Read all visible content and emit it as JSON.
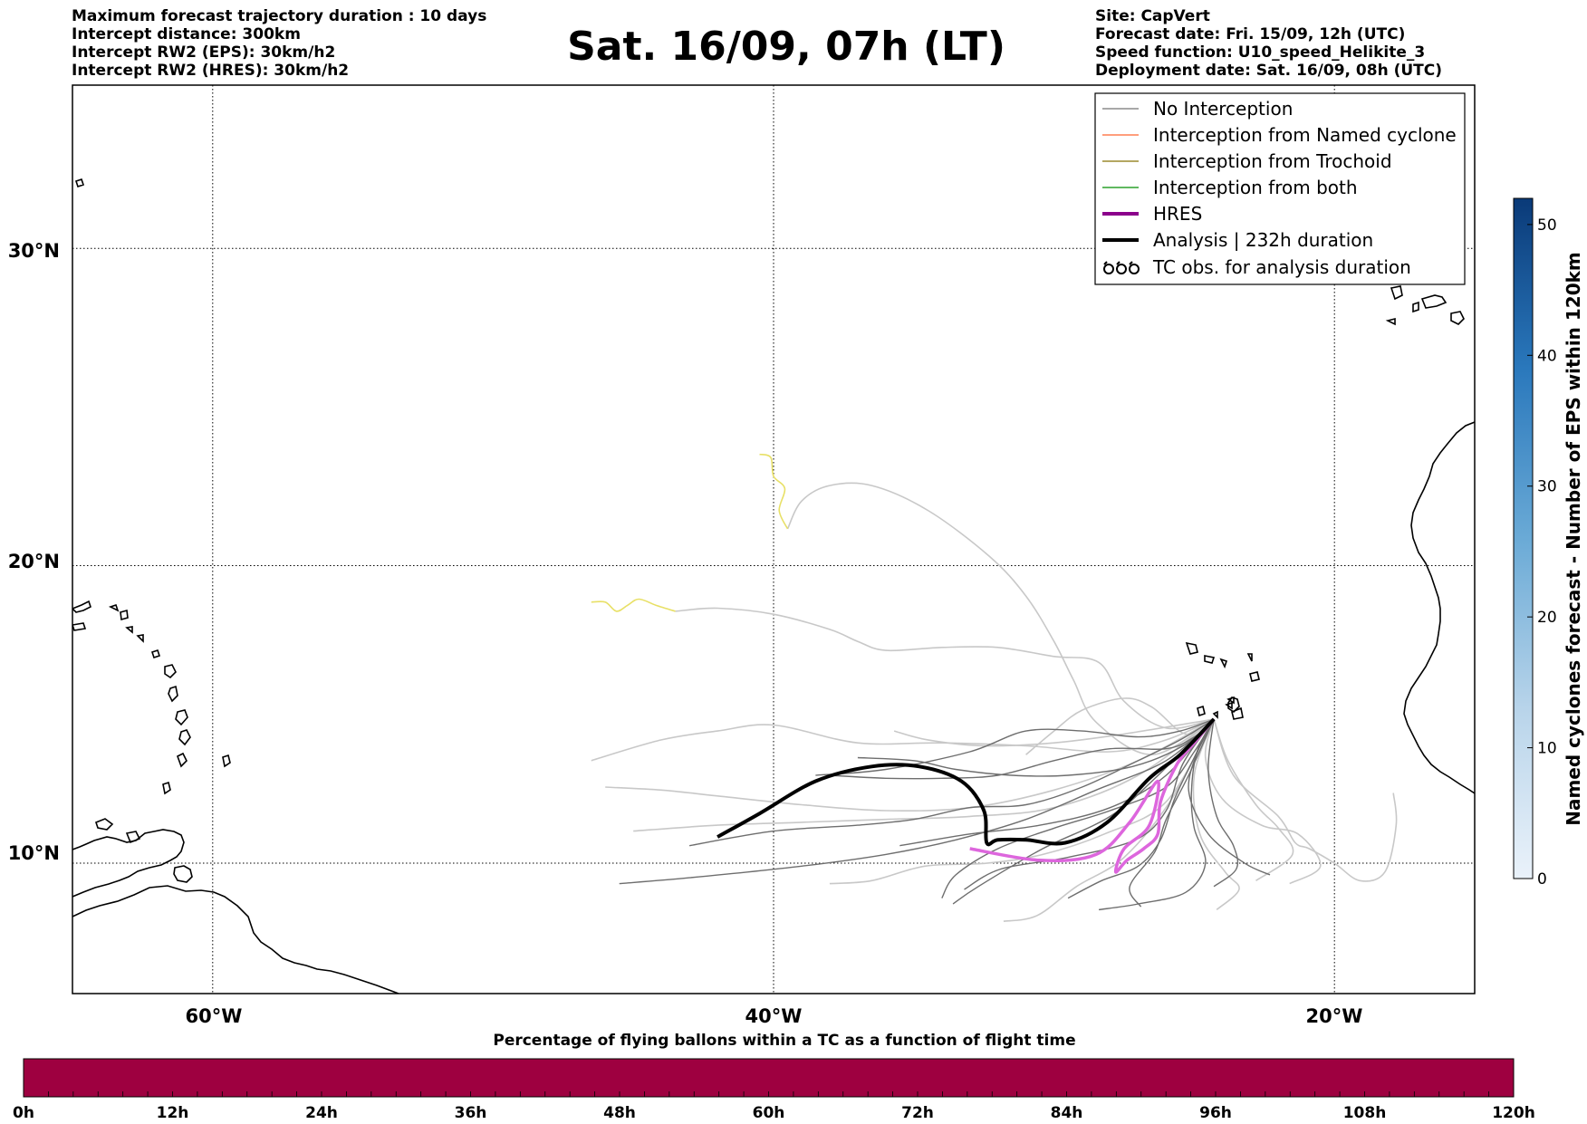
{
  "header": {
    "info_left": [
      "Maximum forecast trajectory duration : 10 days",
      "Intercept distance: 300km",
      "Intercept RW2 (EPS):  30km/h2",
      "Intercept RW2 (HRES): 30km/h2"
    ],
    "title": "Sat. 16/09, 07h (LT)",
    "info_right": [
      "Site: CapVert",
      "Forecast date: Fri. 15/09, 12h (UTC)",
      "Speed function: U10_speed_Helikite_3",
      "Deployment date: Sat. 16/09, 08h (UTC)"
    ]
  },
  "map": {
    "lon_labels": [
      "60°W",
      "40°W",
      "20°W"
    ],
    "lat_labels": [
      "30°N",
      "20°N",
      "10°N"
    ],
    "extent": {
      "lon_min": -65,
      "lon_max": -15,
      "lat_min": 5.5,
      "lat_max": 34.8
    }
  },
  "legend": {
    "items": [
      {
        "label": "No Interception",
        "color": "#8c8c8c",
        "style": "thin"
      },
      {
        "label": "Interception from Named cyclone",
        "color": "#ff7f50",
        "style": "thin"
      },
      {
        "label": "Interception from Trochoid",
        "color": "#9b8a2e",
        "style": "thin"
      },
      {
        "label": "Interception from both",
        "color": "#2ca02c",
        "style": "thin"
      },
      {
        "label": "HRES",
        "color": "#8b008b",
        "style": "thick"
      },
      {
        "label": "Analysis | 232h duration",
        "color": "#000000",
        "style": "thick"
      },
      {
        "label": "TC obs. for analysis duration",
        "color": "#000000",
        "style": "tc-symbol"
      }
    ]
  },
  "colorbar_right": {
    "title": "Named cyclones forecast - Number of EPS within 120km",
    "ticks": [
      "0",
      "10",
      "20",
      "30",
      "40",
      "50"
    ],
    "max": 52,
    "color_low": "#e6eef8",
    "color_high": "#0b3c7a"
  },
  "colorbar_bottom": {
    "title": "Percentage of flying ballons within a TC as a function of flight time",
    "ticks": [
      "0h",
      "12h",
      "24h",
      "36h",
      "48h",
      "60h",
      "72h",
      "84h",
      "96h",
      "108h",
      "120h"
    ],
    "fill_color": "#9e0040"
  },
  "chart_data": {
    "type": "map-trajectories",
    "origin": {
      "lon": -24.3,
      "lat": 14.9
    },
    "analysis_track": [
      [
        -24.3,
        14.9
      ],
      [
        -25.5,
        13.7
      ],
      [
        -26.6,
        12.9
      ],
      [
        -28.1,
        11.4
      ],
      [
        -29.6,
        10.7
      ],
      [
        -31.0,
        10.8
      ],
      [
        -32.0,
        10.8
      ],
      [
        -32.4,
        10.7
      ],
      [
        -32.5,
        11.8
      ],
      [
        -33.3,
        12.8
      ],
      [
        -34.8,
        13.3
      ],
      [
        -36.5,
        13.3
      ],
      [
        -38.5,
        12.8
      ],
      [
        -40.5,
        11.7
      ],
      [
        -42.0,
        10.9
      ]
    ],
    "hres_track": [
      [
        -24.3,
        14.9
      ],
      [
        -25.0,
        14.1
      ],
      [
        -25.6,
        13.4
      ],
      [
        -26.2,
        12.1
      ],
      [
        -26.3,
        11.0
      ],
      [
        -26.8,
        10.5
      ],
      [
        -27.4,
        10.1
      ],
      [
        -27.8,
        9.7
      ],
      [
        -27.5,
        10.5
      ],
      [
        -26.6,
        11.3
      ],
      [
        -26.3,
        12.8
      ],
      [
        -27.3,
        11.4
      ],
      [
        -28.5,
        10.3
      ],
      [
        -30.5,
        10.1
      ],
      [
        -33.0,
        10.5
      ]
    ],
    "eps_tracks": [
      [
        [
          -24.3,
          14.9
        ],
        [
          -25,
          14.3
        ],
        [
          -26,
          13.9
        ],
        [
          -28,
          13.9
        ],
        [
          -30,
          13.5
        ],
        [
          -32,
          13.0
        ],
        [
          -34,
          12.9
        ],
        [
          -36,
          12.9
        ],
        [
          -38,
          13.0
        ]
      ],
      [
        [
          -24.3,
          14.9
        ],
        [
          -25.5,
          14.2
        ],
        [
          -27,
          13.5
        ],
        [
          -29,
          12.6
        ],
        [
          -31,
          12.0
        ],
        [
          -33,
          11.9
        ],
        [
          -35,
          11.5
        ],
        [
          -37,
          11.3
        ],
        [
          -40,
          11.1
        ],
        [
          -43,
          10.6
        ]
      ],
      [
        [
          -24.3,
          14.9
        ],
        [
          -26,
          13.5
        ],
        [
          -28.5,
          12.5
        ],
        [
          -31,
          11.5
        ],
        [
          -33.5,
          10.8
        ],
        [
          -36,
          10.3
        ],
        [
          -39,
          9.9
        ],
        [
          -43,
          9.5
        ],
        [
          -45.5,
          9.3
        ]
      ],
      [
        [
          -24.3,
          14.9
        ],
        [
          -25,
          13.8
        ],
        [
          -26,
          12.6
        ],
        [
          -28,
          11.8
        ],
        [
          -30,
          11.2
        ],
        [
          -32,
          10.5
        ],
        [
          -33.5,
          9.6
        ],
        [
          -34,
          8.8
        ]
      ],
      [
        [
          -24.3,
          14.9
        ],
        [
          -25,
          13.6
        ],
        [
          -25.7,
          12.2
        ],
        [
          -26.2,
          10.8
        ],
        [
          -27.0,
          9.9
        ],
        [
          -28.3,
          9.4
        ],
        [
          -29.5,
          8.8
        ]
      ],
      [
        [
          -24.3,
          14.9
        ],
        [
          -24.9,
          13.8
        ],
        [
          -25.1,
          12.4
        ],
        [
          -25.0,
          11.2
        ],
        [
          -24.6,
          10.0
        ],
        [
          -25.3,
          9.0
        ],
        [
          -27.0,
          8.6
        ],
        [
          -28.4,
          8.4
        ]
      ],
      [
        [
          -24.3,
          14.9
        ],
        [
          -25.4,
          14.0
        ],
        [
          -27.2,
          13.3
        ],
        [
          -29.5,
          13.0
        ],
        [
          -31.5,
          13.0
        ],
        [
          -33.5,
          13.2
        ],
        [
          -35,
          13.5
        ],
        [
          -37,
          13.6
        ]
      ],
      [
        [
          -24.3,
          14.9
        ],
        [
          -26,
          13.0
        ],
        [
          -28,
          11.9
        ],
        [
          -30.5,
          11.3
        ],
        [
          -33,
          11.0
        ],
        [
          -35.5,
          10.6
        ]
      ],
      [
        [
          -24.3,
          14.9
        ],
        [
          -25.4,
          13.4
        ],
        [
          -26.0,
          11.8
        ],
        [
          -27.1,
          10.8
        ],
        [
          -29.5,
          10.2
        ],
        [
          -31.9,
          9.8
        ],
        [
          -33.2,
          9.1
        ]
      ],
      [
        [
          -24.3,
          14.9
        ],
        [
          -24.5,
          13.2
        ],
        [
          -24.2,
          11.6
        ],
        [
          -23.6,
          10.6
        ],
        [
          -23.5,
          9.8
        ],
        [
          -24.3,
          9.2
        ]
      ],
      [
        [
          -24.3,
          14.9
        ],
        [
          -25.5,
          14.5
        ],
        [
          -27,
          14.3
        ],
        [
          -29,
          14.5
        ],
        [
          -31,
          14.5
        ],
        [
          -33,
          13.8
        ],
        [
          -36,
          13.2
        ],
        [
          -38.5,
          13.0
        ]
      ],
      [
        [
          -24.3,
          14.9
        ],
        [
          -24.8,
          14.0
        ],
        [
          -25.2,
          12.5
        ],
        [
          -24.5,
          11.0
        ],
        [
          -23.2,
          10.0
        ],
        [
          -22.3,
          9.6
        ]
      ],
      [
        [
          -24.3,
          14.9
        ],
        [
          -26.4,
          12.9
        ],
        [
          -28.0,
          11.6
        ],
        [
          -30.4,
          10.5
        ],
        [
          -32.7,
          9.2
        ],
        [
          -33.6,
          8.6
        ]
      ],
      [
        [
          -24.3,
          14.9
        ],
        [
          -25.2,
          13.0
        ],
        [
          -26.0,
          11.5
        ],
        [
          -26.4,
          10.4
        ],
        [
          -27.3,
          9.2
        ],
        [
          -26.9,
          8.5
        ]
      ]
    ],
    "eps_long_tracks": [
      [
        [
          -24.3,
          14.9
        ],
        [
          -27,
          13.5
        ],
        [
          -30,
          12.5
        ],
        [
          -33,
          11.9
        ],
        [
          -36,
          11.8
        ],
        [
          -39,
          12.0
        ],
        [
          -42,
          12.3
        ],
        [
          -44,
          12.5
        ],
        [
          -46,
          12.6
        ]
      ],
      [
        [
          -24.3,
          14.9
        ],
        [
          -26,
          14.2
        ],
        [
          -28,
          13.8
        ],
        [
          -31,
          14.0
        ],
        [
          -34,
          14.1
        ],
        [
          -37,
          14.1
        ],
        [
          -40,
          14.7
        ],
        [
          -42,
          14.5
        ],
        [
          -44,
          14.2
        ],
        [
          -46.5,
          13.5
        ]
      ],
      [
        [
          -24.3,
          14.9
        ],
        [
          -27,
          13.0
        ],
        [
          -30,
          11.9
        ],
        [
          -33,
          11.6
        ],
        [
          -36,
          11.5
        ],
        [
          -39,
          11.4
        ],
        [
          -42,
          11.3
        ],
        [
          -45,
          11.1
        ]
      ],
      [
        [
          -24.3,
          14.9
        ],
        [
          -26,
          14.6
        ],
        [
          -27.5,
          15.5
        ],
        [
          -28.4,
          16.8
        ],
        [
          -30,
          17.0
        ],
        [
          -32,
          17.3
        ],
        [
          -34,
          17.3
        ],
        [
          -36,
          17.2
        ],
        [
          -37,
          17.5
        ],
        [
          -38,
          17.9
        ],
        [
          -40,
          18.4
        ],
        [
          -42,
          18.6
        ],
        [
          -43.5,
          18.5
        ]
      ],
      [
        [
          -24.3,
          14.9
        ],
        [
          -26.5,
          13.7
        ],
        [
          -28.5,
          14.8
        ],
        [
          -29.3,
          16.2
        ],
        [
          -30.0,
          17.5
        ],
        [
          -31.0,
          19.0
        ],
        [
          -32.3,
          20.3
        ],
        [
          -34.5,
          21.8
        ],
        [
          -36.5,
          22.6
        ],
        [
          -38,
          22.6
        ],
        [
          -39.0,
          22.1
        ],
        [
          -39.5,
          21.2
        ]
      ],
      [
        [
          -24.3,
          14.9
        ],
        [
          -23.8,
          13.5
        ],
        [
          -22.8,
          12.0
        ],
        [
          -22.0,
          11.2
        ],
        [
          -21.5,
          10.3
        ],
        [
          -22.8,
          9.4
        ]
      ],
      [
        [
          -24.3,
          14.9
        ],
        [
          -23.6,
          13.0
        ],
        [
          -22.0,
          11.6
        ],
        [
          -21.4,
          10.7
        ],
        [
          -20.9,
          10.5
        ],
        [
          -20.0,
          10.0
        ],
        [
          -19.1,
          9.4
        ],
        [
          -18.2,
          9.7
        ],
        [
          -17.8,
          11.3
        ],
        [
          -17.9,
          12.4
        ]
      ],
      [
        [
          -24.3,
          14.9
        ],
        [
          -25.3,
          14.4
        ],
        [
          -26.5,
          15.3
        ],
        [
          -27.5,
          15.6
        ],
        [
          -29,
          15.2
        ],
        [
          -30,
          14.5
        ],
        [
          -31,
          13.7
        ]
      ],
      [
        [
          -24.3,
          14.9
        ],
        [
          -25.8,
          12.2
        ],
        [
          -27.5,
          10.2
        ],
        [
          -29.2,
          9.2
        ],
        [
          -30.6,
          8.2
        ],
        [
          -31.8,
          8.0
        ]
      ],
      [
        [
          -24.3,
          14.9
        ],
        [
          -25.0,
          13.0
        ],
        [
          -24.8,
          11.0
        ],
        [
          -23.9,
          9.7
        ],
        [
          -23.4,
          9.1
        ],
        [
          -24.2,
          8.4
        ]
      ],
      [
        [
          -24.3,
          14.9
        ],
        [
          -26,
          12.1
        ],
        [
          -28.2,
          11.0
        ],
        [
          -30.4,
          10.3
        ],
        [
          -32.4,
          10.0
        ],
        [
          -34.6,
          9.9
        ],
        [
          -36.5,
          9.4
        ],
        [
          -38,
          9.3
        ]
      ],
      [
        [
          -24.3,
          14.9
        ],
        [
          -27.5,
          14.4
        ],
        [
          -30.0,
          14.1
        ],
        [
          -32.5,
          14.0
        ],
        [
          -34.5,
          14.2
        ],
        [
          -35.7,
          14.5
        ]
      ],
      [
        [
          -24.3,
          14.9
        ],
        [
          -24.6,
          13.6
        ],
        [
          -24.0,
          12.2
        ],
        [
          -22.6,
          11.3
        ],
        [
          -21.3,
          11.0
        ],
        [
          -20.5,
          9.9
        ],
        [
          -21.6,
          9.3
        ]
      ]
    ],
    "yellow_tracks": [
      [
        [
          -43.5,
          18.5
        ],
        [
          -44.2,
          18.7
        ],
        [
          -44.8,
          18.9
        ],
        [
          -45.2,
          18.7
        ],
        [
          -45.6,
          18.5
        ],
        [
          -46.0,
          18.8
        ],
        [
          -46.5,
          18.8
        ]
      ],
      [
        [
          -39.5,
          21.2
        ],
        [
          -39.8,
          21.8
        ],
        [
          -39.6,
          22.5
        ],
        [
          -40.0,
          22.9
        ],
        [
          -40.1,
          23.5
        ],
        [
          -40.5,
          23.6
        ]
      ]
    ],
    "graticule_lon": [
      -60,
      -40,
      -20
    ],
    "graticule_lat": [
      30,
      20,
      10
    ]
  }
}
